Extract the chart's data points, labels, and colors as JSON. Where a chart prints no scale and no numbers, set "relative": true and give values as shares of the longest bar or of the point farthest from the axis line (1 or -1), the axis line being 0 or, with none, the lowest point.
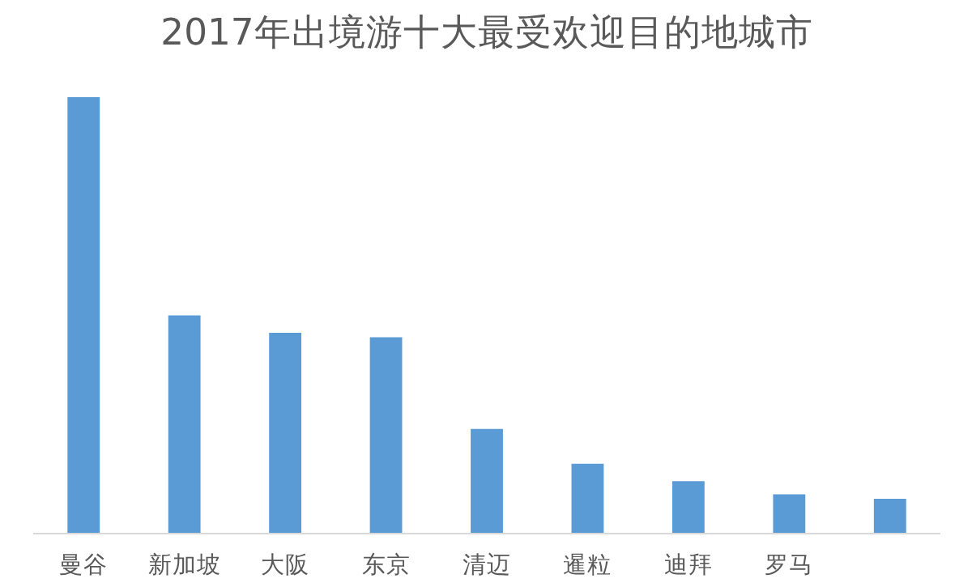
{
  "chart_data": {
    "type": "bar",
    "title": "2017年出境游十大最受欢迎目的地城市",
    "categories": [
      "曼谷",
      "新加坡",
      "大阪",
      "东京",
      "清迈",
      "暹粒",
      "迪拜",
      "罗马",
      null
    ],
    "values": [
      1,
      0.5,
      0.46,
      0.45,
      0.24,
      0.16,
      0.12,
      0.09,
      0.08
    ],
    "color": "#5b9bd5",
    "relative": true,
    "grid": false
  }
}
